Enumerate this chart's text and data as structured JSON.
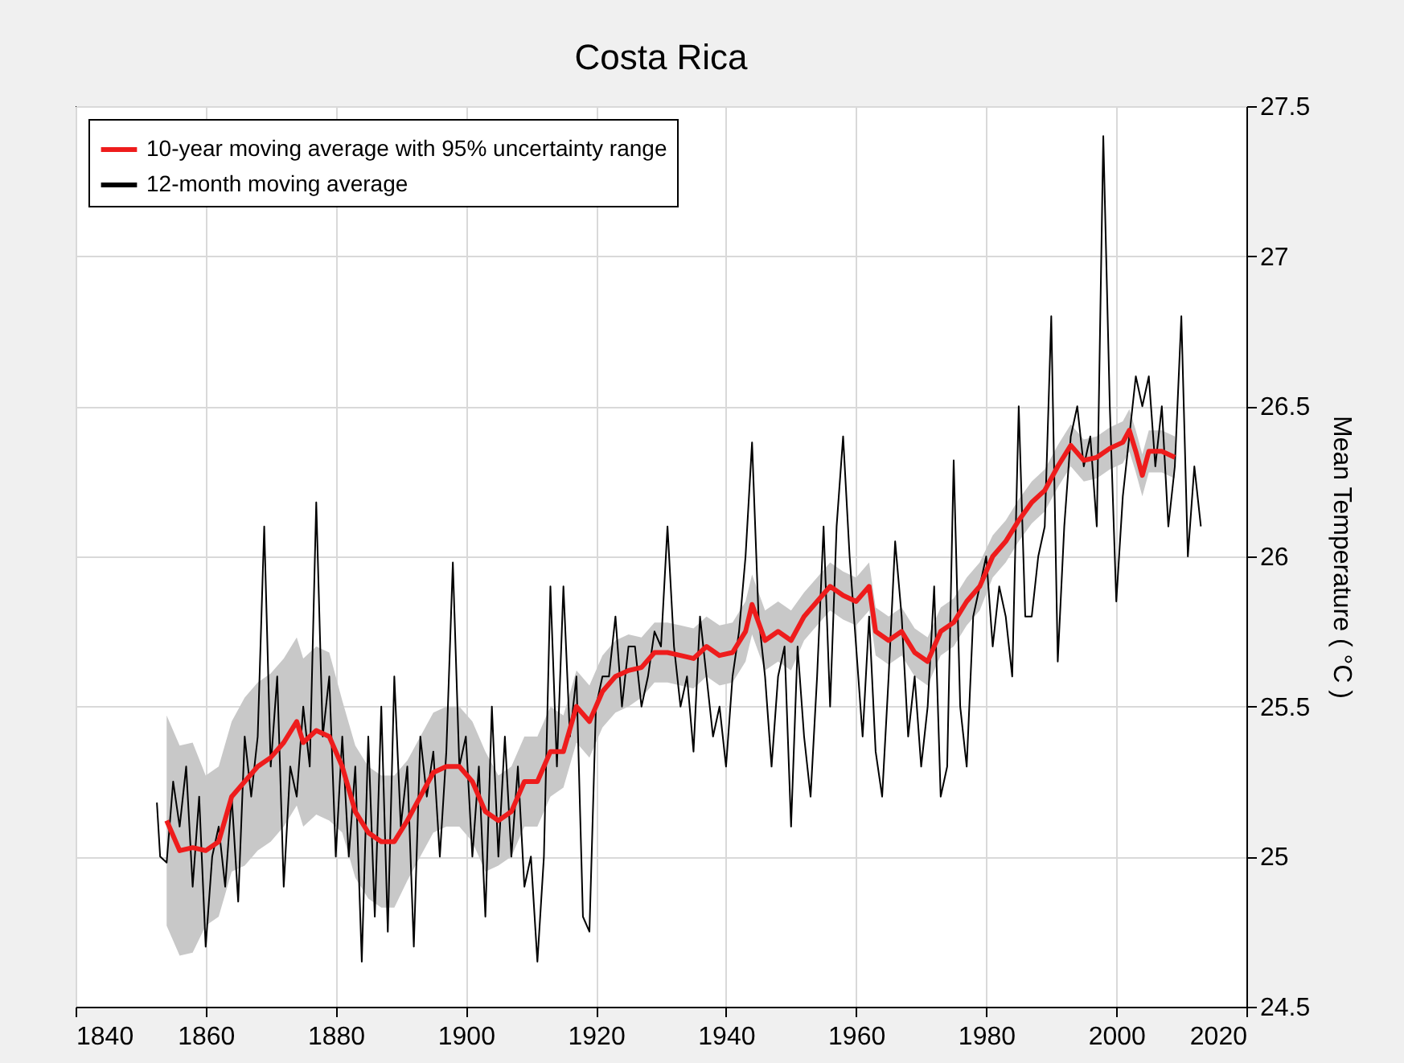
{
  "chart_data": {
    "type": "line",
    "title": "Costa Rica",
    "ylabel": "Mean Temperature ( °C )",
    "xlim": [
      1840,
      2020
    ],
    "xticks": [
      1840,
      1860,
      1880,
      1900,
      1920,
      1940,
      1960,
      1980,
      2000,
      2020
    ],
    "ylim": [
      24.5,
      27.5
    ],
    "yticks": [
      24.5,
      25,
      25.5,
      26,
      26.5,
      27,
      27.5
    ],
    "grid": true,
    "legend": "top left",
    "series": [
      {
        "name": "10-year moving average with 95% uncertainty range",
        "color": "#ee1c1c",
        "x": [
          1854,
          1856,
          1858,
          1860,
          1862,
          1864,
          1866,
          1868,
          1870,
          1872,
          1874,
          1875,
          1877,
          1879,
          1881,
          1883,
          1885,
          1887,
          1889,
          1891,
          1893,
          1895,
          1897,
          1899,
          1901,
          1903,
          1905,
          1907,
          1909,
          1911,
          1913,
          1915,
          1917,
          1919,
          1921,
          1923,
          1925,
          1927,
          1929,
          1931,
          1933,
          1935,
          1937,
          1939,
          1941,
          1943,
          1944,
          1946,
          1948,
          1950,
          1952,
          1954,
          1956,
          1958,
          1960,
          1962,
          1963,
          1965,
          1967,
          1969,
          1971,
          1973,
          1975,
          1977,
          1979,
          1981,
          1983,
          1985,
          1987,
          1989,
          1991,
          1993,
          1995,
          1997,
          1999,
          2001,
          2002,
          2003,
          2004,
          2005,
          2007,
          2009
        ],
        "values": [
          25.12,
          25.02,
          25.03,
          25.02,
          25.05,
          25.2,
          25.25,
          25.3,
          25.33,
          25.38,
          25.45,
          25.38,
          25.42,
          25.4,
          25.3,
          25.15,
          25.08,
          25.05,
          25.05,
          25.12,
          25.2,
          25.28,
          25.3,
          25.3,
          25.25,
          25.15,
          25.12,
          25.15,
          25.25,
          25.25,
          25.35,
          25.35,
          25.5,
          25.45,
          25.55,
          25.6,
          25.62,
          25.63,
          25.68,
          25.68,
          25.67,
          25.66,
          25.7,
          25.67,
          25.68,
          25.75,
          25.84,
          25.72,
          25.75,
          25.72,
          25.8,
          25.85,
          25.9,
          25.87,
          25.85,
          25.9,
          25.75,
          25.72,
          25.75,
          25.68,
          25.65,
          25.75,
          25.78,
          25.85,
          25.9,
          26.0,
          26.05,
          26.12,
          26.18,
          26.22,
          26.3,
          26.37,
          26.32,
          26.33,
          26.36,
          26.38,
          26.42,
          26.35,
          26.27,
          26.35,
          26.35,
          26.33
        ],
        "lower": [
          24.77,
          24.67,
          24.68,
          24.77,
          24.8,
          24.95,
          24.97,
          25.02,
          25.05,
          25.1,
          25.17,
          25.1,
          25.14,
          25.12,
          25.08,
          24.93,
          24.86,
          24.83,
          24.83,
          24.92,
          25.0,
          25.08,
          25.1,
          25.1,
          25.05,
          24.95,
          24.97,
          25.0,
          25.1,
          25.1,
          25.2,
          25.23,
          25.38,
          25.33,
          25.43,
          25.48,
          25.5,
          25.53,
          25.58,
          25.58,
          25.57,
          25.56,
          25.6,
          25.57,
          25.58,
          25.65,
          25.74,
          25.62,
          25.65,
          25.62,
          25.72,
          25.77,
          25.82,
          25.79,
          25.77,
          25.82,
          25.67,
          25.64,
          25.67,
          25.6,
          25.57,
          25.67,
          25.7,
          25.77,
          25.82,
          25.93,
          25.98,
          26.05,
          26.11,
          26.15,
          26.23,
          26.3,
          26.25,
          26.26,
          26.29,
          26.31,
          26.35,
          26.28,
          26.2,
          26.28,
          26.28,
          26.26
        ],
        "upper": [
          25.47,
          25.37,
          25.38,
          25.27,
          25.3,
          25.45,
          25.53,
          25.58,
          25.61,
          25.66,
          25.73,
          25.66,
          25.7,
          25.68,
          25.52,
          25.37,
          25.3,
          25.27,
          25.27,
          25.32,
          25.4,
          25.48,
          25.5,
          25.5,
          25.45,
          25.35,
          25.27,
          25.3,
          25.4,
          25.4,
          25.5,
          25.47,
          25.62,
          25.57,
          25.67,
          25.72,
          25.74,
          25.73,
          25.78,
          25.78,
          25.77,
          25.76,
          25.8,
          25.77,
          25.78,
          25.85,
          25.94,
          25.82,
          25.85,
          25.82,
          25.88,
          25.93,
          25.98,
          25.95,
          25.93,
          25.98,
          25.83,
          25.8,
          25.83,
          25.76,
          25.73,
          25.83,
          25.86,
          25.93,
          25.98,
          26.07,
          26.12,
          26.19,
          26.25,
          26.29,
          26.37,
          26.44,
          26.39,
          26.4,
          26.43,
          26.45,
          26.49,
          26.42,
          26.34,
          26.42,
          26.42,
          26.4
        ]
      },
      {
        "name": "12-month moving average",
        "color": "#000000",
        "x": [
          1852.5,
          1853,
          1854,
          1855,
          1856,
          1857,
          1858,
          1859,
          1860,
          1861,
          1862,
          1863,
          1864,
          1865,
          1866,
          1867,
          1868,
          1869,
          1870,
          1871,
          1872,
          1873,
          1874,
          1875,
          1876,
          1877,
          1878,
          1879,
          1880,
          1881,
          1882,
          1883,
          1884,
          1885,
          1886,
          1887,
          1888,
          1889,
          1890,
          1891,
          1892,
          1893,
          1894,
          1895,
          1896,
          1897,
          1898,
          1899,
          1900,
          1901,
          1902,
          1903,
          1904,
          1905,
          1906,
          1907,
          1908,
          1909,
          1910,
          1911,
          1912,
          1913,
          1914,
          1915,
          1916,
          1917,
          1918,
          1919,
          1920,
          1921,
          1922,
          1923,
          1924,
          1925,
          1926,
          1927,
          1928,
          1929,
          1930,
          1931,
          1932,
          1933,
          1934,
          1935,
          1936,
          1937,
          1938,
          1939,
          1940,
          1941,
          1942,
          1943,
          1944,
          1945,
          1946,
          1947,
          1948,
          1949,
          1950,
          1951,
          1952,
          1953,
          1954,
          1955,
          1956,
          1957,
          1958,
          1959,
          1960,
          1961,
          1962,
          1963,
          1964,
          1965,
          1966,
          1967,
          1968,
          1969,
          1970,
          1971,
          1972,
          1973,
          1974,
          1975,
          1976,
          1977,
          1978,
          1979,
          1980,
          1981,
          1982,
          1983,
          1984,
          1985,
          1986,
          1987,
          1988,
          1989,
          1990,
          1991,
          1992,
          1993,
          1994,
          1995,
          1996,
          1997,
          1998,
          1999,
          2000,
          2001,
          2002,
          2003,
          2004,
          2005,
          2006,
          2007,
          2008,
          2009,
          2010,
          2011,
          2012,
          2013
        ],
        "values": [
          25.18,
          25.0,
          24.98,
          25.25,
          25.1,
          25.3,
          24.9,
          25.2,
          24.7,
          25.0,
          25.1,
          24.9,
          25.2,
          24.85,
          25.4,
          25.2,
          25.4,
          26.1,
          25.3,
          25.6,
          24.9,
          25.3,
          25.2,
          25.5,
          25.3,
          26.18,
          25.4,
          25.6,
          25.0,
          25.4,
          25.0,
          25.3,
          24.65,
          25.4,
          24.8,
          25.5,
          24.75,
          25.6,
          25.1,
          25.3,
          24.7,
          25.4,
          25.2,
          25.35,
          25.0,
          25.35,
          25.98,
          25.3,
          25.4,
          25.0,
          25.3,
          24.8,
          25.5,
          25.0,
          25.4,
          25.0,
          25.3,
          24.9,
          25.0,
          24.65,
          25.0,
          25.9,
          25.3,
          25.9,
          25.4,
          25.6,
          24.8,
          24.75,
          25.5,
          25.6,
          25.6,
          25.8,
          25.5,
          25.7,
          25.7,
          25.5,
          25.6,
          25.75,
          25.7,
          26.1,
          25.7,
          25.5,
          25.6,
          25.35,
          25.8,
          25.6,
          25.4,
          25.5,
          25.3,
          25.6,
          25.75,
          26.0,
          26.38,
          25.8,
          25.6,
          25.3,
          25.6,
          25.7,
          25.1,
          25.7,
          25.4,
          25.2,
          25.6,
          26.1,
          25.5,
          26.1,
          26.4,
          26.0,
          25.7,
          25.4,
          25.8,
          25.35,
          25.2,
          25.6,
          26.05,
          25.8,
          25.4,
          25.6,
          25.3,
          25.5,
          25.9,
          25.2,
          25.3,
          26.32,
          25.5,
          25.3,
          25.8,
          25.9,
          26.0,
          25.7,
          25.9,
          25.8,
          25.6,
          26.5,
          25.8,
          25.8,
          26.0,
          26.1,
          26.8,
          25.65,
          26.1,
          26.4,
          26.5,
          26.3,
          26.4,
          26.1,
          27.4,
          26.5,
          25.85,
          26.2,
          26.4,
          26.6,
          26.5,
          26.6,
          26.3,
          26.5,
          26.1,
          26.3,
          26.8,
          26.0,
          26.3,
          26.1
        ]
      }
    ]
  }
}
